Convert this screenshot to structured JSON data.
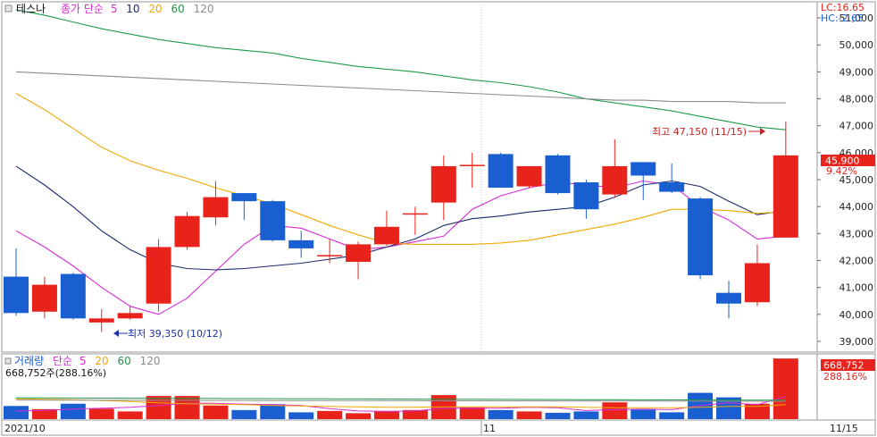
{
  "colors": {
    "up": "#e8231b",
    "down": "#1a5fd1",
    "ma5_price": "#d62bd6",
    "ma10": "#1b2a6b",
    "ma20": "#f0a800",
    "ma60": "#1e9a4a",
    "ma120": "#8c8c8c",
    "axis_text": "#222222",
    "grid": "#c8c8c8",
    "frame": "#9a9a9a",
    "annotation": "#c8201e",
    "annotation_low": "#1a2fa8",
    "price_box": "#e8231b"
  },
  "price_panel": {
    "ticker": "테스나",
    "legend_prefix": "종가 단순",
    "legend_periods": [
      "5",
      "10",
      "20",
      "60",
      "120"
    ],
    "lc_label": "LC:16.65",
    "hc_label": "HC:-2.65",
    "current_price_label": "45,900",
    "current_change_label": "9.42%",
    "high_annotation": "최고 47,150 (11/15)",
    "low_annotation": "최저 39,350 (10/12)"
  },
  "volume_panel": {
    "title": "거래량",
    "legend_prefix": "단순",
    "legend_periods": [
      "5",
      "20",
      "60",
      "120"
    ],
    "summary": "668,752주(288.16%)",
    "current_volume_label": "668,752",
    "current_ratio_label": "288.16%"
  },
  "x_axis": {
    "labels": [
      "2021/10",
      "11",
      "11/15"
    ]
  },
  "chart_data": {
    "type": "candlestick",
    "ylim": [
      38600,
      51600
    ],
    "yticks": [
      39000,
      40000,
      41000,
      42000,
      43000,
      44000,
      45000,
      46000,
      47000,
      48000,
      49000,
      50000,
      51000
    ],
    "ytick_labels": [
      "39,000",
      "40,000",
      "41,000",
      "42,000",
      "43,000",
      "44,000",
      "45,000",
      "46,000",
      "47,000",
      "48,000",
      "49,000",
      "50,000",
      "51,000"
    ],
    "candles": [
      {
        "o": 41400,
        "h": 42450,
        "l": 39950,
        "c": 40050
      },
      {
        "o": 40100,
        "h": 41400,
        "l": 39850,
        "c": 41100
      },
      {
        "o": 41500,
        "h": 41550,
        "l": 39800,
        "c": 39850
      },
      {
        "o": 39700,
        "h": 40200,
        "l": 39350,
        "c": 39850
      },
      {
        "o": 39850,
        "h": 40300,
        "l": 39800,
        "c": 40050
      },
      {
        "o": 40400,
        "h": 42800,
        "l": 40100,
        "c": 42500
      },
      {
        "o": 42500,
        "h": 43800,
        "l": 42400,
        "c": 43650
      },
      {
        "o": 43600,
        "h": 44950,
        "l": 43300,
        "c": 44350
      },
      {
        "o": 44500,
        "h": 44500,
        "l": 43500,
        "c": 44200
      },
      {
        "o": 44200,
        "h": 44250,
        "l": 42700,
        "c": 42750
      },
      {
        "o": 42750,
        "h": 43100,
        "l": 42100,
        "c": 42450
      },
      {
        "o": 42200,
        "h": 42800,
        "l": 41900,
        "c": 42200
      },
      {
        "o": 41950,
        "h": 42700,
        "l": 41300,
        "c": 42600
      },
      {
        "o": 42600,
        "h": 43850,
        "l": 42550,
        "c": 43250
      },
      {
        "o": 43750,
        "h": 44000,
        "l": 42950,
        "c": 43750
      },
      {
        "o": 44150,
        "h": 45900,
        "l": 43500,
        "c": 45500
      },
      {
        "o": 45500,
        "h": 46000,
        "l": 44700,
        "c": 45550
      },
      {
        "o": 45950,
        "h": 46000,
        "l": 44700,
        "c": 44700
      },
      {
        "o": 44750,
        "h": 45500,
        "l": 44700,
        "c": 45500
      },
      {
        "o": 45900,
        "h": 45950,
        "l": 44450,
        "c": 44500
      },
      {
        "o": 44900,
        "h": 45000,
        "l": 43550,
        "c": 43900
      },
      {
        "o": 44450,
        "h": 46500,
        "l": 44350,
        "c": 45500
      },
      {
        "o": 45650,
        "h": 45650,
        "l": 44250,
        "c": 45150
      },
      {
        "o": 44900,
        "h": 45600,
        "l": 44500,
        "c": 44550
      },
      {
        "o": 44300,
        "h": 44350,
        "l": 41300,
        "c": 41450
      },
      {
        "o": 40800,
        "h": 41250,
        "l": 39850,
        "c": 40400
      },
      {
        "o": 40450,
        "h": 42600,
        "l": 40300,
        "c": 41900
      },
      {
        "o": 42850,
        "h": 47150,
        "l": 42850,
        "c": 45900
      }
    ],
    "ma_lines": [
      {
        "period": "5",
        "color_key": "ma5_price",
        "values": [
          43100,
          42500,
          41800,
          41000,
          40300,
          40000,
          40600,
          41600,
          42600,
          43300,
          43200,
          42800,
          42400,
          42500,
          42700,
          42900,
          43900,
          44400,
          44700,
          44900,
          44800,
          44700,
          44950,
          44800,
          44000,
          43500,
          42800,
          42900
        ]
      },
      {
        "period": "10",
        "color_key": "ma10",
        "values": [
          45500,
          44800,
          44000,
          43100,
          42400,
          41900,
          41700,
          41650,
          41700,
          41800,
          41900,
          42050,
          42200,
          42500,
          42800,
          43300,
          43550,
          43650,
          43800,
          43900,
          44000,
          44350,
          44800,
          44950,
          44750,
          44200,
          43700,
          43850
        ]
      },
      {
        "period": "20",
        "color_key": "ma20",
        "values": [
          48200,
          47600,
          46900,
          46200,
          45700,
          45350,
          45050,
          44700,
          44400,
          44100,
          43700,
          43300,
          42950,
          42650,
          42600,
          42600,
          42600,
          42650,
          42750,
          42950,
          43150,
          43350,
          43600,
          43900,
          43900,
          43850,
          43750,
          43800
        ]
      },
      {
        "period": "60",
        "color_key": "ma60",
        "values": [
          51300,
          51100,
          50850,
          50600,
          50400,
          50200,
          50050,
          49900,
          49800,
          49700,
          49500,
          49350,
          49200,
          49100,
          49000,
          48850,
          48700,
          48600,
          48450,
          48250,
          48000,
          47850,
          47700,
          47550,
          47350,
          47150,
          46950,
          46850
        ]
      },
      {
        "period": "120",
        "color_key": "ma120",
        "values": [
          49000,
          48950,
          48900,
          48850,
          48800,
          48750,
          48700,
          48650,
          48600,
          48550,
          48500,
          48450,
          48400,
          48350,
          48300,
          48250,
          48200,
          48150,
          48100,
          48050,
          48000,
          47950,
          47950,
          47900,
          47900,
          47900,
          47850,
          47850
        ]
      }
    ],
    "volume": {
      "ylim": [
        0,
        700000
      ],
      "values": [
        145000,
        110000,
        170000,
        115000,
        85000,
        255000,
        255000,
        150000,
        100000,
        165000,
        75000,
        90000,
        65000,
        90000,
        100000,
        265000,
        130000,
        100000,
        85000,
        70000,
        85000,
        185000,
        105000,
        75000,
        290000,
        240000,
        170000,
        668752
      ],
      "ma_lines": [
        {
          "period": "5",
          "color_key": "ma5_price",
          "values": [
            90000,
            95000,
            110000,
            120000,
            130000,
            150000,
            175000,
            175000,
            165000,
            160000,
            150000,
            115000,
            90000,
            85000,
            90000,
            120000,
            120000,
            120000,
            130000,
            125000,
            95000,
            105000,
            110000,
            105000,
            150000,
            180000,
            160000,
            250000
          ]
        },
        {
          "period": "20",
          "color_key": "ma20",
          "values": [
            225000,
            220000,
            215000,
            205000,
            195000,
            180000,
            170000,
            165000,
            160000,
            150000,
            145000,
            140000,
            135000,
            130000,
            130000,
            135000,
            135000,
            135000,
            135000,
            135000,
            130000,
            125000,
            125000,
            125000,
            130000,
            140000,
            140000,
            160000
          ]
        },
        {
          "period": "60",
          "color_key": "ma60",
          "values": [
            235000,
            234000,
            233000,
            232000,
            231000,
            230000,
            229000,
            228000,
            227000,
            226000,
            225000,
            224000,
            223000,
            222000,
            221000,
            220000,
            219000,
            218000,
            217000,
            216000,
            215000,
            214000,
            213000,
            212000,
            211000,
            210000,
            210000,
            210000
          ]
        },
        {
          "period": "120",
          "color_key": "ma120",
          "values": [
            210000,
            209000,
            209000,
            208000,
            208000,
            207000,
            207000,
            206000,
            206000,
            205000,
            205000,
            204000,
            204000,
            203000,
            203000,
            202000,
            202000,
            201000,
            201000,
            200000,
            200000,
            199000,
            199000,
            198000,
            198000,
            197000,
            197000,
            196000
          ]
        }
      ]
    }
  }
}
